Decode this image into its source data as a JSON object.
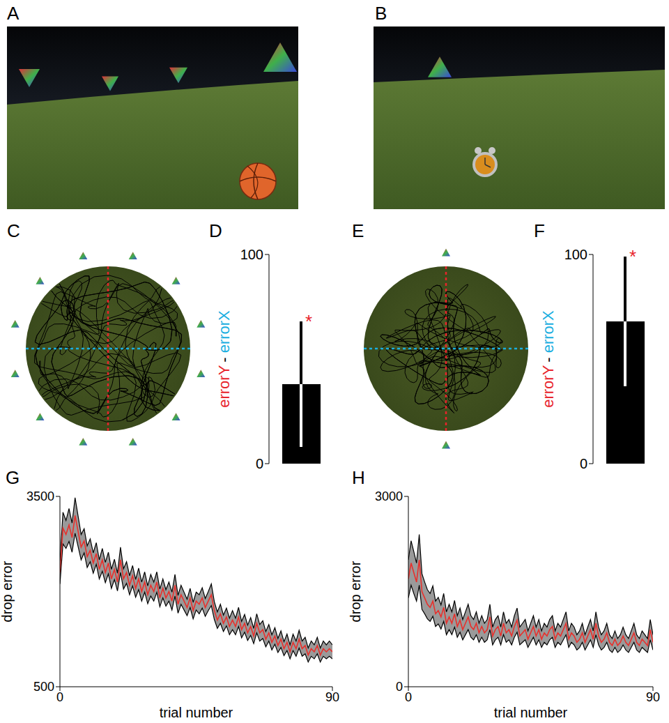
{
  "scenes": [
    {
      "panel": "A"
    },
    {
      "panel": "B"
    }
  ],
  "arenas": [
    {
      "panel": "C"
    },
    {
      "panel": "E"
    }
  ],
  "chart_data": [
    {
      "panel": "D",
      "type": "bar",
      "categories": [
        null
      ],
      "values": [
        38
      ],
      "errors": [
        30
      ],
      "color": "#000000",
      "ylim": [
        0,
        100
      ],
      "yticks": [
        0,
        100
      ],
      "tick_labels": "y",
      "ylabel": [
        {
          "text": "errorY",
          "color": "#e8242b"
        },
        {
          "text": "-",
          "color": "#000000"
        },
        {
          "text": "errorX",
          "color": "#1aaee0"
        }
      ],
      "annotations": [
        {
          "text": "*",
          "color": "#e8242b"
        }
      ]
    },
    {
      "panel": "F",
      "type": "bar",
      "categories": [
        null
      ],
      "values": [
        68
      ],
      "errors": [
        31
      ],
      "color": "#000000",
      "ylim": [
        0,
        100
      ],
      "yticks": [
        0,
        100
      ],
      "tick_labels": "y",
      "ylabel": [
        {
          "text": "errorY",
          "color": "#e8242b"
        },
        {
          "text": "-",
          "color": "#000000"
        },
        {
          "text": "errorX",
          "color": "#1aaee0"
        }
      ],
      "annotations": [
        {
          "text": "*",
          "color": "#e8242b"
        }
      ]
    },
    {
      "panel": "G",
      "type": "line",
      "xlabel": "trial number",
      "ylabel": "drop error",
      "color": "#e8302c",
      "xlim": [
        0,
        90
      ],
      "xticks": [
        0,
        90
      ],
      "ylim": [
        500,
        3500
      ],
      "yticks": [
        500,
        3500
      ],
      "x": [
        0,
        1,
        2,
        3,
        4,
        5,
        6,
        7,
        8,
        9,
        10,
        11,
        12,
        13,
        14,
        15,
        16,
        17,
        18,
        19,
        20,
        21,
        22,
        23,
        24,
        25,
        26,
        27,
        28,
        29,
        30,
        31,
        32,
        33,
        34,
        35,
        36,
        37,
        38,
        39,
        40,
        41,
        42,
        43,
        44,
        45,
        46,
        47,
        48,
        49,
        50,
        51,
        52,
        53,
        54,
        55,
        56,
        57,
        58,
        59,
        60,
        61,
        62,
        63,
        64,
        65,
        66,
        67,
        68,
        69,
        70,
        71,
        72,
        73,
        74,
        75,
        76,
        77,
        78,
        79,
        80,
        81,
        82,
        83,
        84,
        85,
        86,
        87,
        88,
        89,
        90
      ],
      "values": [
        2300,
        3000,
        2900,
        3050,
        2850,
        3200,
        2950,
        2700,
        2800,
        2550,
        2650,
        2450,
        2600,
        2350,
        2500,
        2300,
        2450,
        2200,
        2350,
        2150,
        2500,
        2200,
        2300,
        2100,
        2250,
        2050,
        2200,
        2000,
        2150,
        1950,
        2100,
        2000,
        2150,
        1900,
        2050,
        1900,
        2000,
        1850,
        2100,
        1800,
        1950,
        1850,
        1750,
        1900,
        1700,
        1850,
        1800,
        1900,
        1750,
        1850,
        1950,
        1700,
        1550,
        1650,
        1500,
        1600,
        1450,
        1550,
        1450,
        1600,
        1400,
        1500,
        1350,
        1450,
        1300,
        1500,
        1350,
        1400,
        1250,
        1350,
        1200,
        1300,
        1150,
        1250,
        1100,
        1200,
        1050,
        1200,
        1100,
        1250,
        1100,
        1150,
        1000,
        1100,
        1050,
        1150,
        1000,
        1100,
        1050,
        1100,
        1050
      ],
      "errors": [
        180,
        250,
        220,
        260,
        230,
        280,
        240,
        200,
        190,
        170,
        180,
        160,
        170,
        150,
        180,
        160,
        170,
        150,
        160,
        140,
        200,
        160,
        170,
        150,
        160,
        140,
        170,
        150,
        160,
        140,
        170,
        150,
        160,
        140,
        150,
        130,
        150,
        140,
        170,
        140,
        150,
        140,
        130,
        150,
        130,
        140,
        150,
        160,
        140,
        150,
        170,
        140,
        130,
        150,
        130,
        140,
        130,
        150,
        130,
        150,
        130,
        140,
        120,
        140,
        120,
        150,
        130,
        140,
        120,
        130,
        120,
        130,
        110,
        130,
        110,
        130,
        110,
        130,
        120,
        140,
        120,
        130,
        110,
        120,
        110,
        130,
        110,
        120,
        110,
        120,
        110
      ]
    },
    {
      "panel": "H",
      "type": "line",
      "xlabel": "trial number",
      "ylabel": "drop error",
      "color": "#e8302c",
      "xlim": [
        0,
        90
      ],
      "xticks": [
        0,
        90
      ],
      "ylim": [
        0,
        3000
      ],
      "yticks": [
        0,
        3000
      ],
      "x": [
        0,
        1,
        2,
        3,
        4,
        5,
        6,
        7,
        8,
        9,
        10,
        11,
        12,
        13,
        14,
        15,
        16,
        17,
        18,
        19,
        20,
        21,
        22,
        23,
        24,
        25,
        26,
        27,
        28,
        29,
        30,
        31,
        32,
        33,
        34,
        35,
        36,
        37,
        38,
        39,
        40,
        41,
        42,
        43,
        44,
        45,
        46,
        47,
        48,
        49,
        50,
        51,
        52,
        53,
        54,
        55,
        56,
        57,
        58,
        59,
        60,
        61,
        62,
        63,
        64,
        65,
        66,
        67,
        68,
        69,
        70,
        71,
        72,
        73,
        74,
        75,
        76,
        77,
        78,
        79,
        80,
        81,
        82,
        83,
        84,
        85,
        86,
        87,
        88,
        89,
        90
      ],
      "values": [
        1700,
        1950,
        1800,
        1650,
        2000,
        1500,
        1400,
        1300,
        1250,
        1350,
        1150,
        1200,
        1100,
        1250,
        1000,
        1100,
        1000,
        1150,
        950,
        1050,
        900,
        1000,
        1100,
        950,
        900,
        1000,
        850,
        950,
        850,
        900,
        1100,
        800,
        900,
        950,
        800,
        1000,
        850,
        900,
        800,
        950,
        1050,
        800,
        850,
        900,
        750,
        850,
        950,
        800,
        900,
        750,
        850,
        800,
        900,
        950,
        750,
        850,
        800,
        900,
        1000,
        750,
        850,
        800,
        700,
        750,
        850,
        700,
        800,
        900,
        750,
        1000,
        800,
        700,
        750,
        850,
        700,
        650,
        750,
        650,
        700,
        800,
        700,
        650,
        750,
        850,
        700,
        650,
        750,
        700,
        650,
        900,
        700
      ],
      "errors": [
        300,
        350,
        330,
        300,
        400,
        280,
        250,
        230,
        220,
        240,
        200,
        210,
        190,
        220,
        180,
        200,
        180,
        210,
        170,
        190,
        160,
        180,
        200,
        170,
        160,
        180,
        150,
        170,
        150,
        160,
        200,
        140,
        160,
        170,
        140,
        180,
        150,
        160,
        140,
        170,
        190,
        140,
        150,
        160,
        130,
        150,
        170,
        140,
        160,
        130,
        150,
        140,
        160,
        170,
        130,
        150,
        140,
        160,
        180,
        130,
        150,
        140,
        120,
        130,
        150,
        120,
        140,
        160,
        130,
        180,
        140,
        120,
        130,
        150,
        120,
        110,
        130,
        110,
        120,
        140,
        120,
        110,
        130,
        150,
        120,
        110,
        130,
        120,
        110,
        160,
        120
      ]
    }
  ]
}
